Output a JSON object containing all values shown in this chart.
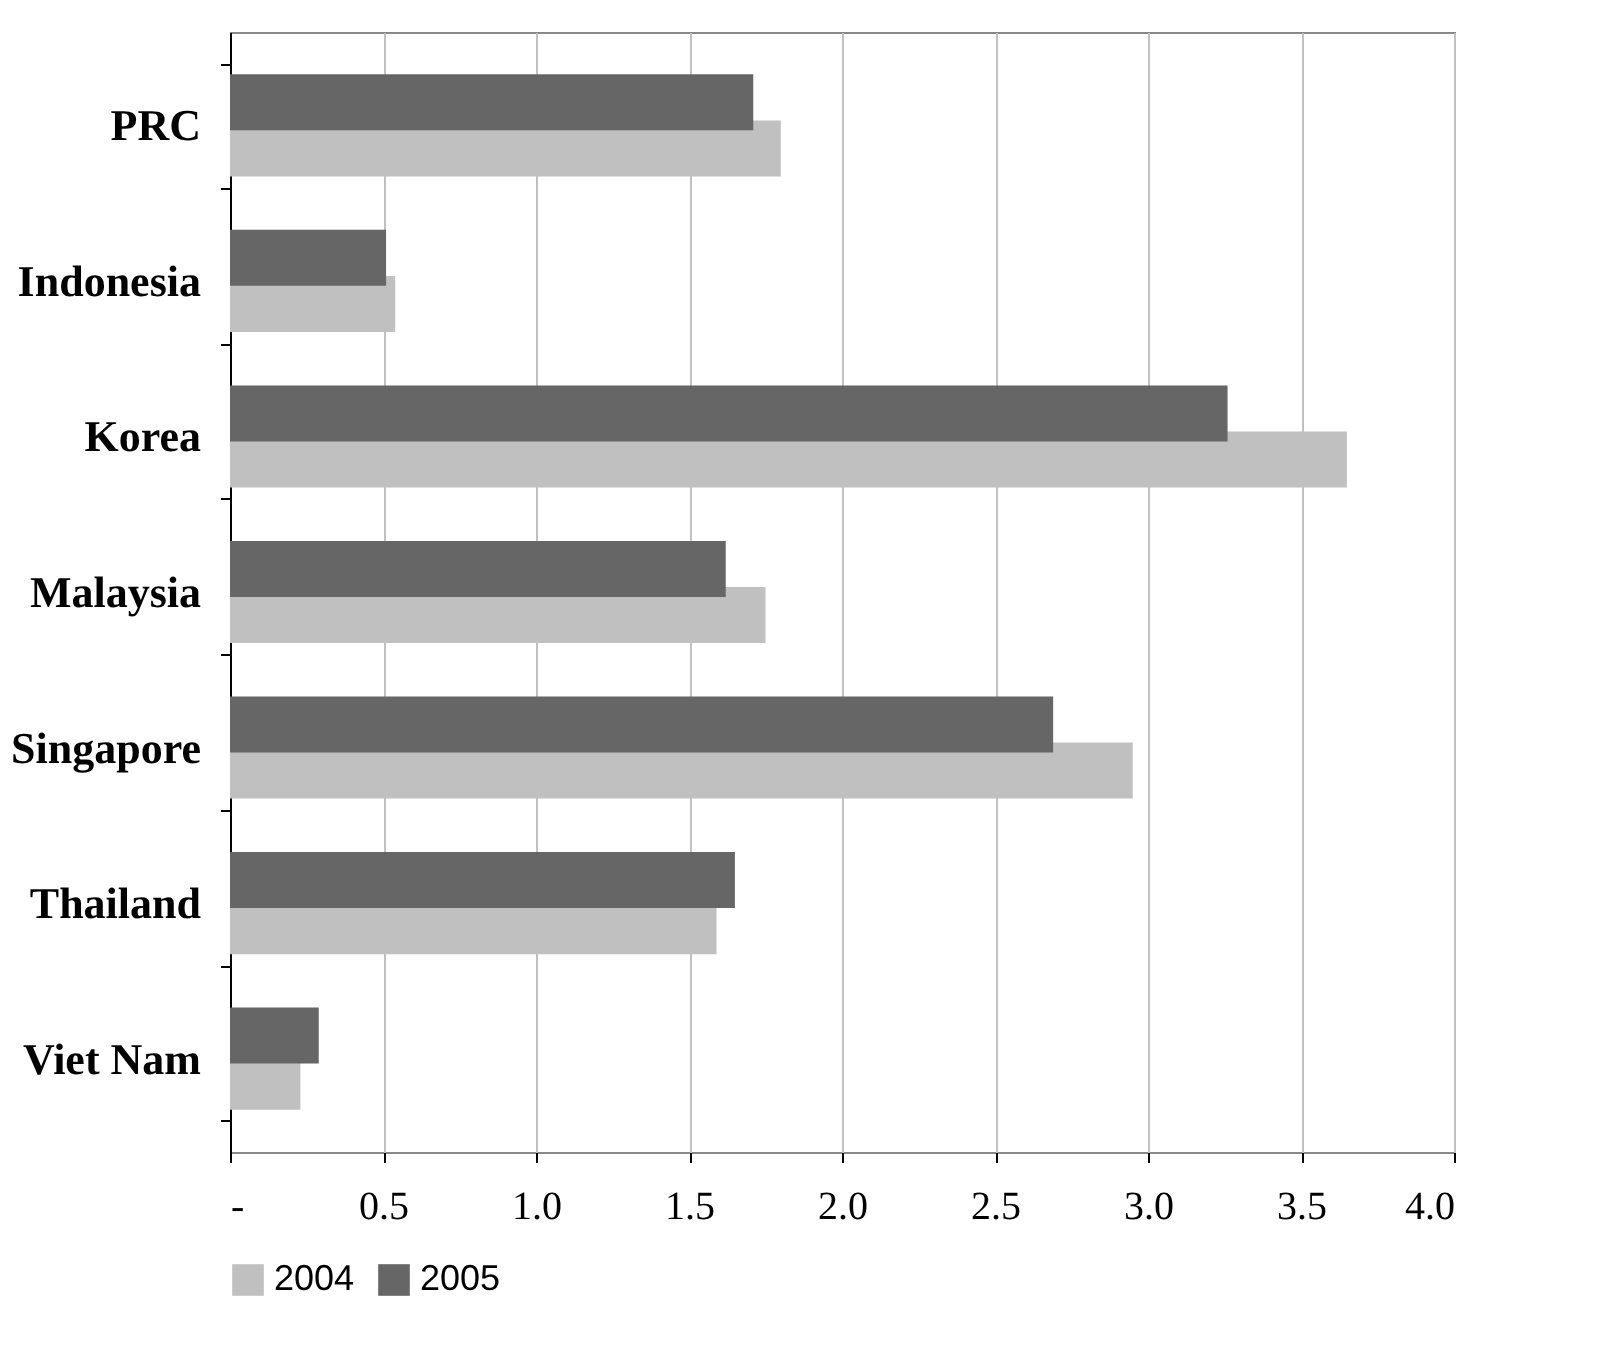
{
  "chart_data": {
    "type": "bar",
    "orientation": "horizontal",
    "categories": [
      "PRC",
      "Indonesia",
      "Korea",
      "Malaysia",
      "Singapore",
      "Thailand",
      "Viet Nam"
    ],
    "series": [
      {
        "name": "2004",
        "color": "#c0c0c0",
        "values": [
          1.8,
          0.54,
          3.65,
          1.75,
          2.95,
          1.59,
          0.23
        ]
      },
      {
        "name": "2005",
        "color": "#666666",
        "values": [
          1.71,
          0.51,
          3.26,
          1.62,
          2.69,
          1.65,
          0.29
        ]
      }
    ],
    "xlim": [
      0,
      4.0
    ],
    "xticks": [
      {
        "value": 0,
        "label": "-"
      },
      0.5,
      {
        "value": 1.0,
        "label": "1.0"
      },
      1.5,
      {
        "value": 2.0,
        "label": "2.0"
      },
      2.5,
      {
        "value": 3.0,
        "label": "3.0"
      },
      3.5,
      {
        "value": 4.0,
        "label": "4.0"
      }
    ],
    "grid": "x",
    "legend": "bottom"
  }
}
